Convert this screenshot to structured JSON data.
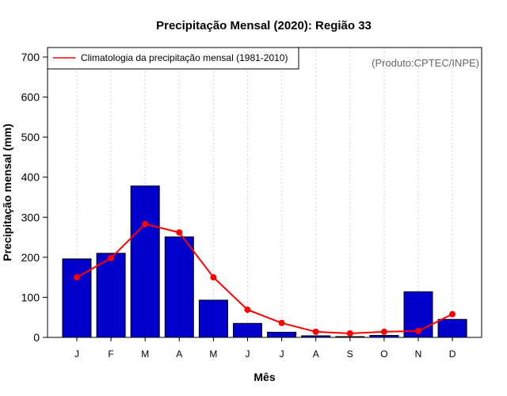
{
  "chart_data": {
    "type": "bar",
    "title": "Precipitação Mensal (2020): Região 33",
    "xlabel": "Mês",
    "ylabel": "Precipitação mensal (mm)",
    "categories": [
      "J",
      "F",
      "M",
      "A",
      "M",
      "J",
      "J",
      "A",
      "S",
      "O",
      "N",
      "D"
    ],
    "ylim": [
      0,
      700
    ],
    "yticks": [
      0,
      100,
      200,
      300,
      400,
      500,
      600,
      700
    ],
    "series": [
      {
        "name": "Precipitação mensal 2020",
        "type": "bar",
        "color": "#0000cd",
        "values": [
          196,
          210,
          378,
          251,
          93,
          35,
          13,
          4,
          2,
          5,
          114,
          45
        ]
      },
      {
        "name": "Climatologia da precipitação mensal (1981-2010)",
        "type": "line",
        "color": "#ff0000",
        "values": [
          150,
          198,
          283,
          262,
          150,
          69,
          36,
          14,
          10,
          14,
          16,
          58
        ]
      }
    ],
    "legend": {
      "label": "Climatologia da precipitação mensal (1981-2010)",
      "placement": "top-left"
    },
    "annotation": "(Produto:CPTEC/INPE)",
    "grid": "vertical-dotted"
  }
}
